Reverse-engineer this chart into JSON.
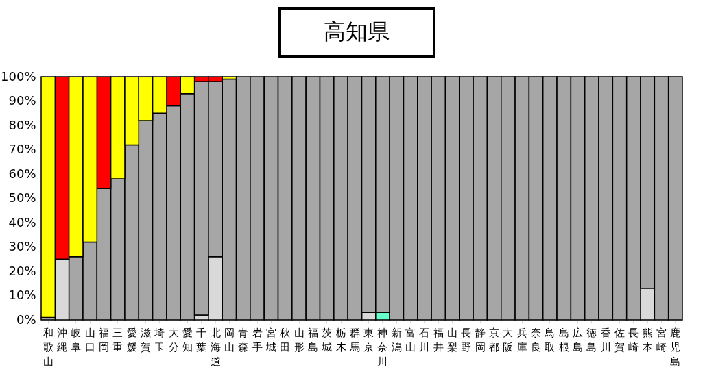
{
  "chart_data": {
    "type": "bar",
    "title": "高知県",
    "stacked": true,
    "categories": [
      "和歌山",
      "沖縄",
      "岐阜",
      "山口",
      "福岡",
      "三重",
      "愛媛",
      "滋賀",
      "埼玉",
      "大分",
      "愛知",
      "千葉",
      "北海道",
      "岡山",
      "青森",
      "岩手",
      "宮城",
      "秋田",
      "山形",
      "福島",
      "茨城",
      "栃木",
      "群馬",
      "東京",
      "神奈川",
      "新潟",
      "富山",
      "石川",
      "福井",
      "山梨",
      "長野",
      "静岡",
      "京都",
      "大阪",
      "兵庫",
      "奈良",
      "鳥取",
      "島根",
      "広島",
      "徳島",
      "香川",
      "佐賀",
      "長崎",
      "熊本",
      "宮崎",
      "鹿児島"
    ],
    "series": [
      {
        "color": "#d9d9d9",
        "values": [
          0,
          25,
          0,
          0,
          0,
          0,
          0,
          0,
          0,
          0,
          0,
          2,
          26,
          0,
          0,
          0,
          0,
          0,
          0,
          0,
          0,
          0,
          0,
          3,
          0,
          0,
          0,
          0,
          0,
          0,
          0,
          0,
          0,
          0,
          0,
          0,
          0,
          0,
          0,
          0,
          0,
          0,
          0,
          13,
          0,
          0
        ]
      },
      {
        "color": "#66ffcc",
        "values": [
          0,
          0,
          0,
          0,
          0,
          0,
          0,
          0,
          0,
          0,
          0,
          0,
          0,
          0,
          0,
          0,
          0,
          0,
          0,
          0,
          0,
          0,
          0,
          0,
          3,
          0,
          0,
          0,
          0,
          0,
          0,
          0,
          0,
          0,
          0,
          0,
          0,
          0,
          0,
          0,
          0,
          0,
          0,
          0,
          0,
          0
        ]
      },
      {
        "color": "#a6a6a6",
        "values": [
          1,
          0,
          26,
          32,
          54,
          58,
          72,
          82,
          85,
          88,
          93,
          96,
          72,
          99,
          100,
          100,
          100,
          100,
          100,
          100,
          100,
          100,
          100,
          97,
          97,
          100,
          100,
          100,
          100,
          100,
          100,
          100,
          100,
          100,
          100,
          100,
          100,
          100,
          100,
          100,
          100,
          100,
          100,
          87,
          100,
          100
        ]
      },
      {
        "color": "#ff0000",
        "values": [
          0,
          75,
          0,
          0,
          46,
          0,
          0,
          0,
          0,
          12,
          0,
          2,
          2,
          0,
          0,
          0,
          0,
          0,
          0,
          0,
          0,
          0,
          0,
          0,
          0,
          0,
          0,
          0,
          0,
          0,
          0,
          0,
          0,
          0,
          0,
          0,
          0,
          0,
          0,
          0,
          0,
          0,
          0,
          0,
          0,
          0
        ]
      },
      {
        "color": "#ffff00",
        "values": [
          99,
          0,
          74,
          68,
          0,
          42,
          28,
          18,
          15,
          0,
          7,
          0,
          0,
          1,
          0,
          0,
          0,
          0,
          0,
          0,
          0,
          0,
          0,
          0,
          0,
          0,
          0,
          0,
          0,
          0,
          0,
          0,
          0,
          0,
          0,
          0,
          0,
          0,
          0,
          0,
          0,
          0,
          0,
          0,
          0,
          0
        ]
      }
    ],
    "ylim": [
      0,
      100
    ],
    "yticks": [
      {
        "value": 0,
        "label": "0%"
      },
      {
        "value": 10,
        "label": "10%"
      },
      {
        "value": 20,
        "label": "20%"
      },
      {
        "value": 30,
        "label": "30%"
      },
      {
        "value": 40,
        "label": "40%"
      },
      {
        "value": 50,
        "label": "50%"
      },
      {
        "value": 60,
        "label": "60%"
      },
      {
        "value": 70,
        "label": "70%"
      },
      {
        "value": 80,
        "label": "80%"
      },
      {
        "value": 90,
        "label": "90%"
      },
      {
        "value": 100,
        "label": "100%"
      }
    ],
    "legend": false
  }
}
